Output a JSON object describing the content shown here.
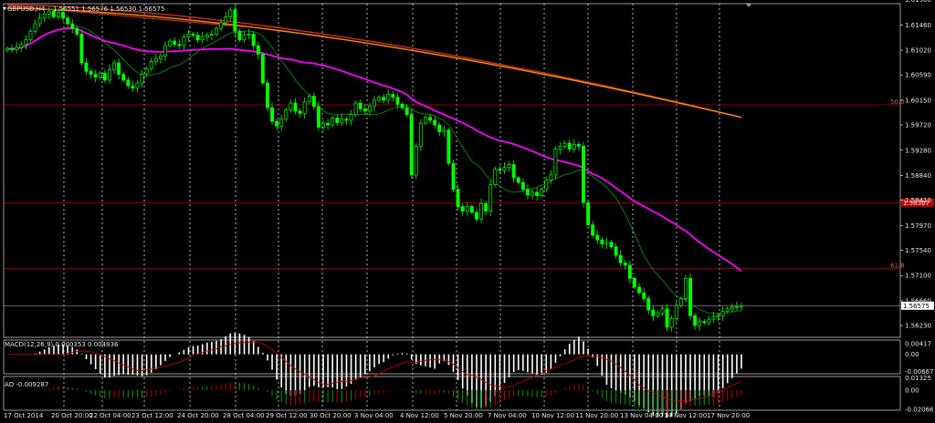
{
  "title": "GBPUSD,H4",
  "ohlc_readout": "1.56551 1.56576 1.56530 1.56575",
  "colors": {
    "background": "#000000",
    "bull_candle": "#ffffff",
    "candle": "#00ff00",
    "ma_fast": "#00a000",
    "ma_mid": "#ff00ff",
    "ma_slow_1": "#c8302a",
    "ma_slow_2": "#ff8c00",
    "hline": "#c00000",
    "grid": "#ffffff"
  },
  "chart_data": [
    {
      "type": "candlestick",
      "title": "GBPUSD,H4",
      "ylim": [
        1.6183,
        1.56025
      ],
      "yticks": [
        "1.61900",
        "1.61460",
        "1.61020",
        "1.60590",
        "1.60150",
        "1.59720",
        "1.59280",
        "1.58840",
        "1.58410",
        "1.57970",
        "1.57540",
        "1.57100",
        "1.56660",
        "1.56230"
      ],
      "xticks": [
        "17 Oct 2014",
        "20 Oct 20:00",
        "22 Oct 04:00",
        "23 Oct 12:00",
        "24 Oct 20:00",
        "28 Oct 04:00",
        "29 Oct 12:00",
        "30 Oct 20:00",
        "3 Nov 04:00",
        "4 Nov 12:00",
        "5 Nov 20:00",
        "7 Nov 04:00",
        "10 Nov 12:00",
        "11 Nov 20:00",
        "13 Nov 04:00",
        "14 Nov 12:00",
        "17 Nov 20:00"
      ],
      "current_price": "1.56575",
      "horizontal_levels": [
        {
          "value": 1.6007,
          "label": "50.0"
        },
        {
          "value": 1.58367,
          "label": "1.58367"
        },
        {
          "value": 1.5722,
          "label": "61.8"
        }
      ],
      "trendline": {
        "from": [
          0,
          1.618
        ],
        "to": [
          52,
          1.6142
        ]
      },
      "close": [
        1.6105,
        1.6103,
        1.6107,
        1.6112,
        1.612,
        1.6135,
        1.6148,
        1.6158,
        1.6165,
        1.617,
        1.616,
        1.6168,
        1.6158,
        1.6148,
        1.614,
        1.613,
        1.608,
        1.6065,
        1.606,
        1.6055,
        1.6062,
        1.605,
        1.6068,
        1.608,
        1.606,
        1.605,
        1.604,
        1.6036,
        1.6045,
        1.606,
        1.607,
        1.6082,
        1.6087,
        1.6092,
        1.611,
        1.6118,
        1.6112,
        1.611,
        1.6125,
        1.613,
        1.6128,
        1.612,
        1.6125,
        1.6128,
        1.613,
        1.614,
        1.615,
        1.616,
        1.6172,
        1.6135,
        1.612,
        1.6128,
        1.613,
        1.611,
        1.6095,
        1.6045,
        1.6002,
        1.5978,
        1.597,
        1.5982,
        1.5998,
        1.601,
        1.5996,
        1.5992,
        1.6012,
        1.6022,
        1.6004,
        1.5968,
        1.5975,
        1.5972,
        1.5984,
        1.5976,
        1.5982,
        1.598,
        1.599,
        1.601,
        1.6,
        1.5996,
        1.6005,
        1.6015,
        1.602,
        1.6015,
        1.6025,
        1.602,
        1.6008,
        1.6002,
        1.599,
        1.5885,
        1.5935,
        1.5975,
        1.5985,
        1.598,
        1.5972,
        1.596,
        1.5963,
        1.5905,
        1.586,
        1.583,
        1.5822,
        1.583,
        1.582,
        1.5808,
        1.5835,
        1.5822,
        1.5868,
        1.5895,
        1.5893,
        1.5898,
        1.5903,
        1.588,
        1.5872,
        1.586,
        1.585,
        1.5855,
        1.5849,
        1.586,
        1.5876,
        1.5885,
        1.593,
        1.5935,
        1.594,
        1.593,
        1.5938,
        1.5935,
        1.5837,
        1.5798,
        1.578,
        1.5772,
        1.5765,
        1.5768,
        1.576,
        1.5745,
        1.5732,
        1.5728,
        1.5705,
        1.569,
        1.568,
        1.567,
        1.565,
        1.564,
        1.5645,
        1.5652,
        1.562,
        1.5635,
        1.5658,
        1.567,
        1.5705,
        1.564,
        1.5623,
        1.563,
        1.5628,
        1.5634,
        1.5638,
        1.564,
        1.5648,
        1.5652,
        1.5655,
        1.5656,
        1.56575
      ],
      "indicators": [
        {
          "type": "MACD",
          "label": "MACD(12,26,9) 0.000353 0.004936",
          "yticks": [
            "0.00417",
            "0.00",
            "-0.00667"
          ],
          "ylim": [
            0.0055,
            -0.0075
          ]
        },
        {
          "type": "AO",
          "label": "AO -0.009287",
          "yticks": [
            "0.01325",
            "0.00",
            "-0.02066"
          ],
          "ylim": [
            0.0145,
            -0.0215
          ]
        }
      ]
    }
  ]
}
